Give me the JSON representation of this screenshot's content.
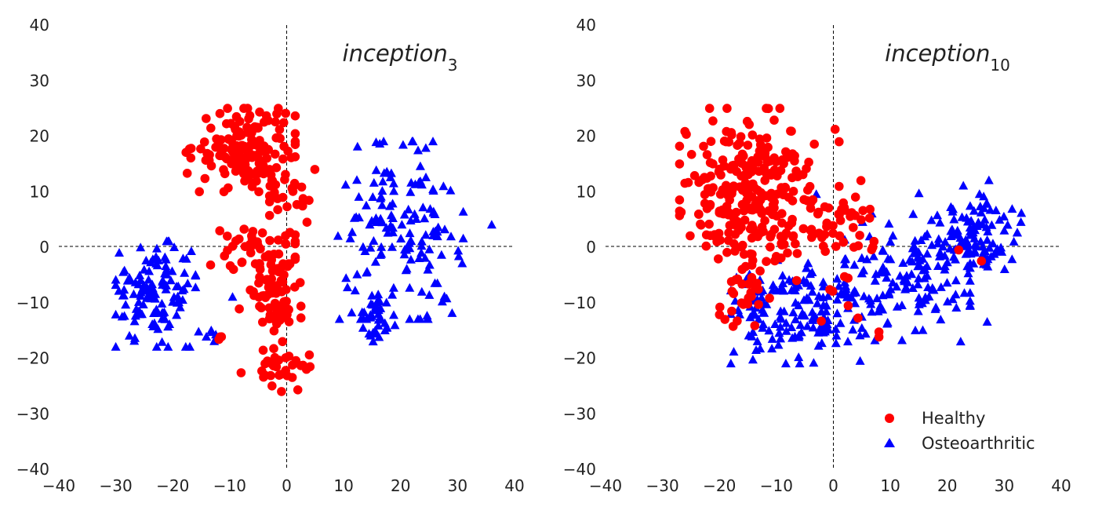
{
  "colors": {
    "healthy": "#ff0000",
    "osteoarthritic": "#0000ff",
    "axis_lines": "#000000"
  },
  "legend": {
    "placement": "lower-right of right panel",
    "healthy": "Healthy",
    "osteoarthritic": "Osteoarthritic"
  },
  "chart_data": [
    {
      "type": "scatter",
      "title_base": "inception",
      "title_sub": "3",
      "xlim": [
        -40,
        40
      ],
      "ylim": [
        -40,
        40
      ],
      "xticks": [
        "−40",
        "−30",
        "−20",
        "−10",
        "0",
        "10",
        "20",
        "30",
        "40"
      ],
      "yticks": [
        "40",
        "30",
        "20",
        "10",
        "0",
        "−10",
        "−20",
        "−30",
        "−40"
      ],
      "reference_lines": {
        "x": 0,
        "y": 0,
        "style": "dashed"
      },
      "grid": false,
      "series": [
        {
          "name": "Healthy",
          "marker": "circle",
          "clusters": [
            {
              "cx": -7,
              "cy": 18,
              "sx": 4.5,
              "sy": 3.5,
              "n": 150,
              "xr": [
                -19,
                1.5
              ],
              "yr": [
                10,
                25
              ]
            },
            {
              "cx": -0.5,
              "cy": 10,
              "sx": 2.5,
              "sy": 2.5,
              "n": 25,
              "xr": [
                -3,
                5.5
              ],
              "yr": [
                3,
                14
              ]
            },
            {
              "cx": -5,
              "cy": 0,
              "sx": 5,
              "sy": 2.5,
              "n": 45,
              "xr": [
                -16,
                1.5
              ],
              "yr": [
                -4,
                5
              ]
            },
            {
              "cx": -2,
              "cy": -9,
              "sx": 2.5,
              "sy": 4,
              "n": 70,
              "xr": [
                -10,
                2.5
              ],
              "yr": [
                -17,
                -3
              ]
            },
            {
              "cx": -1,
              "cy": -22,
              "sx": 3,
              "sy": 1.8,
              "n": 35,
              "xr": [
                -8,
                4.5
              ],
              "yr": [
                -26,
                -18
              ]
            },
            {
              "cx": -12,
              "cy": -16,
              "sx": 0.6,
              "sy": 0.5,
              "n": 3,
              "xr": [
                -13,
                -11
              ],
              "yr": [
                -17,
                -15
              ]
            }
          ]
        },
        {
          "name": "Osteoarthritic",
          "marker": "triangle",
          "clusters": [
            {
              "cx": -23,
              "cy": -8,
              "sx": 4,
              "sy": 4.5,
              "n": 120,
              "xr": [
                -30,
                -16
              ],
              "yr": [
                -18,
                1
              ]
            },
            {
              "cx": -14,
              "cy": -16,
              "sx": 1.5,
              "sy": 1.2,
              "n": 8,
              "xr": [
                -17,
                -12
              ],
              "yr": [
                -18,
                -14
              ]
            },
            {
              "cx": 20,
              "cy": 2,
              "sx": 5.5,
              "sy": 7.5,
              "n": 150,
              "xr": [
                9,
                31
              ],
              "yr": [
                -13,
                19
              ]
            },
            {
              "cx": 16,
              "cy": -13,
              "sx": 1.5,
              "sy": 2.5,
              "n": 35,
              "xr": [
                13,
                19
              ],
              "yr": [
                -19,
                -8
              ]
            }
          ],
          "extra_points": [
            [
              36,
              4
            ],
            [
              -9.5,
              -9
            ]
          ]
        }
      ]
    },
    {
      "type": "scatter",
      "title_base": "inception",
      "title_sub": "10",
      "xlim": [
        -40,
        40
      ],
      "ylim": [
        -40,
        40
      ],
      "xticks": [
        "−40",
        "−30",
        "−20",
        "−10",
        "0",
        "10",
        "20",
        "30",
        "40"
      ],
      "yticks": [
        "40",
        "30",
        "20",
        "10",
        "0",
        "−10",
        "−20",
        "−30",
        "−40"
      ],
      "reference_lines": {
        "x": 0,
        "y": 0,
        "style": "dashed"
      },
      "grid": false,
      "series": [
        {
          "name": "Healthy",
          "marker": "circle",
          "clusters": [
            {
              "cx": -14,
              "cy": 10,
              "sx": 6,
              "sy": 7,
              "n": 280,
              "xr": [
                -27,
                1
              ],
              "yr": [
                -6,
                25
              ]
            },
            {
              "cx": 1,
              "cy": 5,
              "sx": 3.5,
              "sy": 3,
              "n": 40,
              "xr": [
                -4,
                10
              ],
              "yr": [
                -2,
                12
              ]
            },
            {
              "cx": -16,
              "cy": -10,
              "sx": 2,
              "sy": 3,
              "n": 25,
              "xr": [
                -20,
                -10
              ],
              "yr": [
                -17,
                -4
              ]
            },
            {
              "cx": 2,
              "cy": -8,
              "sx": 4,
              "sy": 5,
              "n": 12,
              "xr": [
                -8,
                8
              ],
              "yr": [
                -19,
                0
              ]
            }
          ],
          "extra_points": [
            [
              22,
              -0.5
            ],
            [
              26,
              -2.5
            ],
            [
              -27,
              15
            ],
            [
              1,
              19
            ]
          ]
        },
        {
          "name": "Osteoarthritic",
          "marker": "triangle",
          "clusters": [
            {
              "cx": -6,
              "cy": -12,
              "sx": 6,
              "sy": 4.5,
              "n": 160,
              "xr": [
                -18,
                5
              ],
              "yr": [
                -21,
                -2
              ]
            },
            {
              "cx": 13,
              "cy": -6,
              "sx": 6,
              "sy": 5,
              "n": 130,
              "xr": [
                2,
                24
              ],
              "yr": [
                -19,
                6
              ]
            },
            {
              "cx": 24,
              "cy": 2,
              "sx": 4.5,
              "sy": 4,
              "n": 110,
              "xr": [
                14,
                33
              ],
              "yr": [
                -8,
                12
              ]
            }
          ],
          "extra_points": [
            [
              27,
              -13.5
            ],
            [
              -3,
              9.5
            ],
            [
              -17,
              -5.5
            ]
          ]
        }
      ]
    }
  ]
}
